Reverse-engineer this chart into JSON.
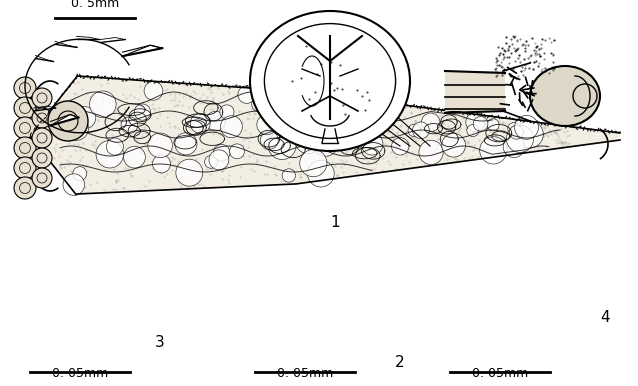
{
  "bg_color": "#ffffff",
  "scalebar_top_label": "0. 5mm",
  "scalebar_bot_label": "0. 05mm",
  "label1": "1",
  "label2": "2",
  "label3": "3",
  "label4": "4",
  "font_size_labels": 11,
  "font_size_scalebar": 9,
  "figsize": [
    6.38,
    3.86
  ],
  "dpi": 100
}
